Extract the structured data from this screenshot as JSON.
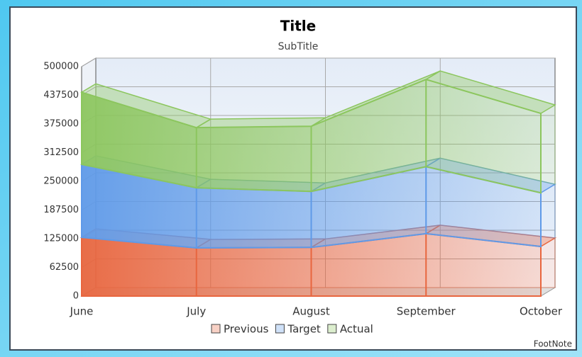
{
  "chart_data": {
    "type": "area3d",
    "title": "Title",
    "subtitle": "SubTitle",
    "footnote": "FootNote",
    "categories": [
      "June",
      "July",
      "August",
      "September",
      "October"
    ],
    "stacked": true,
    "series": [
      {
        "name": "Previous",
        "color": "#e8663f",
        "values": [
          128000,
          105000,
          106000,
          136000,
          108000
        ]
      },
      {
        "name": "Target",
        "color": "#5f9ae8",
        "values": [
          159000,
          131000,
          122000,
          146000,
          117000
        ]
      },
      {
        "name": "Actual",
        "color": "#8cc65e",
        "values": [
          157000,
          131000,
          142000,
          190000,
          173000
        ]
      }
    ],
    "ylim": [
      0,
      500000
    ],
    "yticks": [
      0,
      62500,
      125000,
      187500,
      250000,
      312500,
      375000,
      437500,
      500000
    ],
    "grid": true
  }
}
